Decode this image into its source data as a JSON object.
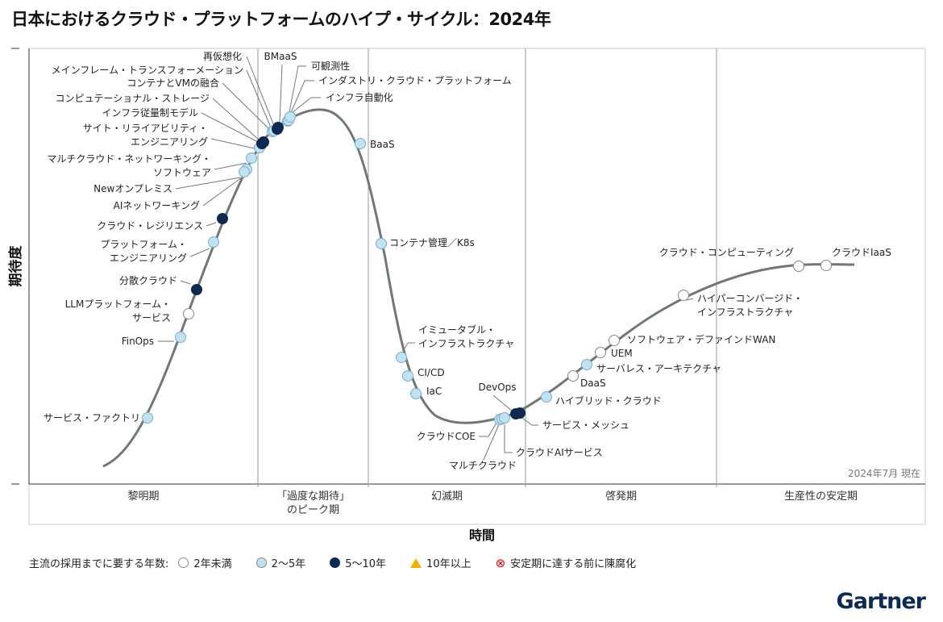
{
  "title": "日本におけるクラウド・プラットフォームのハイプ・サイクル：2024年",
  "ylabel": "期待度",
  "xlabel": "時間",
  "date_note": "2024年7月 現在",
  "phases": [
    "黎明期",
    "「過度な期待」\nのピーク期",
    "幻滅期",
    "啓発期",
    "生産性の安定期"
  ],
  "legend": {
    "prefix": "主流の採用までに要する年数:",
    "items": [
      {
        "label": "2年未満",
        "category": "lt2"
      },
      {
        "label": "2〜5年",
        "category": "2to5"
      },
      {
        "label": "5〜10年",
        "category": "5to10"
      },
      {
        "label": "10年以上",
        "category": "gt10"
      },
      {
        "label": "安定期に達する前に陳腐化",
        "category": "obsolete"
      }
    ]
  },
  "colors": {
    "lt2": "#ffffff",
    "2to5": "#bfe3f2",
    "5to10": "#0d2a50",
    "gt10": "#f0b400",
    "obsolete": "#e00000",
    "curve": "#6f7878"
  },
  "items": [
    {
      "label": "サービス・ファクトリ",
      "category": "2to5"
    },
    {
      "label": "FinOps",
      "category": "2to5"
    },
    {
      "label": "LLMプラットフォーム・\nサービス",
      "category": "lt2"
    },
    {
      "label": "分散クラウド",
      "category": "5to10"
    },
    {
      "label": "プラットフォーム・\nエンジニアリング",
      "category": "2to5"
    },
    {
      "label": "クラウド・レジリエンス",
      "category": "5to10"
    },
    {
      "label": "AIネットワーキング",
      "category": "2to5"
    },
    {
      "label": "Newオンプレミス",
      "category": "2to5"
    },
    {
      "label": "マルチクラウド・ネットワーキング・\nソフトウェア",
      "category": "2to5"
    },
    {
      "label": "サイト・リライアビリティ・\nエンジニアリング",
      "category": "2to5"
    },
    {
      "label": "インフラ従量制モデル",
      "category": "5to10"
    },
    {
      "label": "コンピュテーショナル・ストレージ",
      "category": "5to10"
    },
    {
      "label": "コンテナとVMの融合",
      "category": "2to5"
    },
    {
      "label": "メインフレーム・トランスフォーメーション",
      "category": "2to5"
    },
    {
      "label": "再仮想化",
      "category": "5to10"
    },
    {
      "label": "BMaaS",
      "category": "5to10"
    },
    {
      "label": "可観測性",
      "category": "2to5"
    },
    {
      "label": "インダストリ・クラウド・プラットフォーム",
      "category": "2to5"
    },
    {
      "label": "インフラ自動化",
      "category": "2to5"
    },
    {
      "label": "BaaS",
      "category": "2to5"
    },
    {
      "label": "コンテナ管理／K8s",
      "category": "2to5"
    },
    {
      "label": "イミュータブル・\nインフラストラクチャ",
      "category": "2to5"
    },
    {
      "label": "CI/CD",
      "category": "2to5"
    },
    {
      "label": "IaC",
      "category": "2to5"
    },
    {
      "label": "クラウドCOE",
      "category": "2to5"
    },
    {
      "label": "マルチクラウド",
      "category": "2to5"
    },
    {
      "label": "クラウドAIサービス",
      "category": "2to5"
    },
    {
      "label": "DevOps",
      "category": "5to10"
    },
    {
      "label": "サービス・メッシュ",
      "category": "5to10"
    },
    {
      "label": "ハイブリッド・クラウド",
      "category": "2to5"
    },
    {
      "label": "DaaS",
      "category": "lt2"
    },
    {
      "label": "サーバレス・アーキテクチャ",
      "category": "2to5"
    },
    {
      "label": "UEM",
      "category": "lt2"
    },
    {
      "label": "ソフトウェア・デファインドWAN",
      "category": "lt2"
    },
    {
      "label": "ハイパーコンバージド・\nインフラストラクチャ",
      "category": "lt2"
    },
    {
      "label": "クラウド・コンピューティング",
      "category": "lt2"
    },
    {
      "label": "クラウドIaaS",
      "category": "lt2"
    }
  ],
  "brand": "Gartner"
}
